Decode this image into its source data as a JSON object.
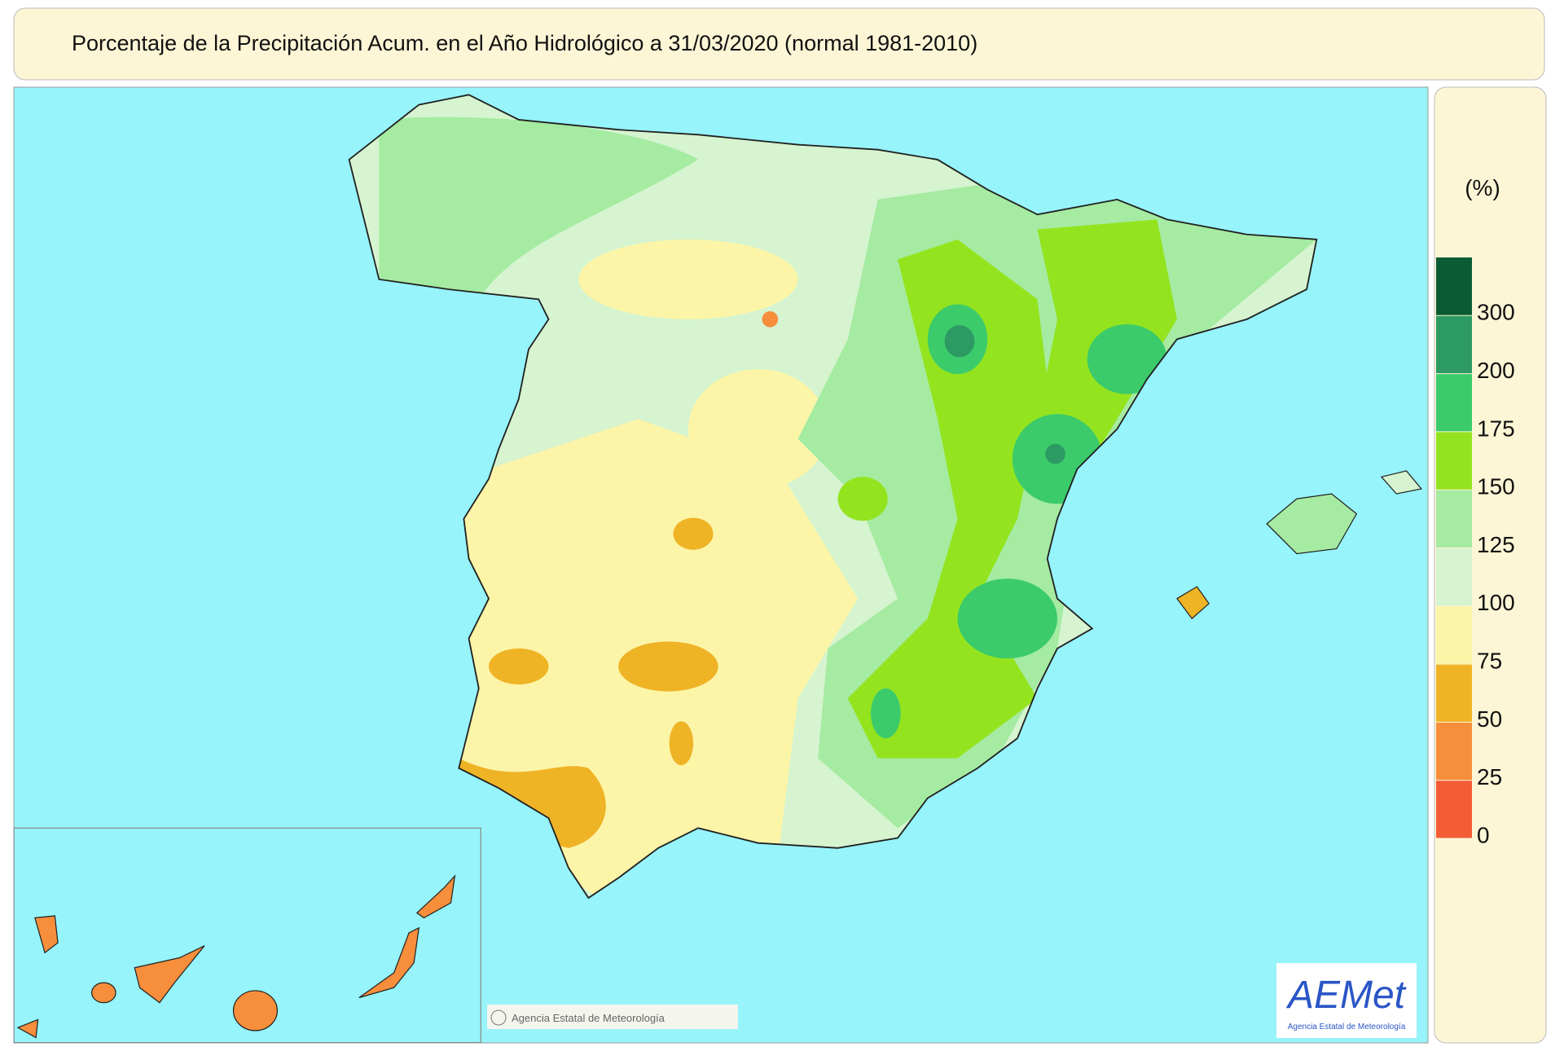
{
  "header": {
    "title": "Porcentaje de la Precipitación Acum. en el Año Hidrológico a 31/03/2020  (normal 1981-2010)"
  },
  "legend": {
    "unit": "(%)",
    "ticks": [
      0,
      25,
      50,
      75,
      100,
      125,
      150,
      175,
      200,
      300
    ],
    "colors": [
      "#f45c35",
      "#f78e3c",
      "#efb326",
      "#fcf5a8",
      "#d5f4cf",
      "#a5eba2",
      "#93e41f",
      "#3bcb6b",
      "#2d9963",
      "#0b5c34"
    ]
  },
  "footer": {
    "copyright": "Agencia Estatal de Meteorología",
    "logo": "AEMet",
    "logo_subtitle": "Agencia Estatal de Meteorología"
  }
}
